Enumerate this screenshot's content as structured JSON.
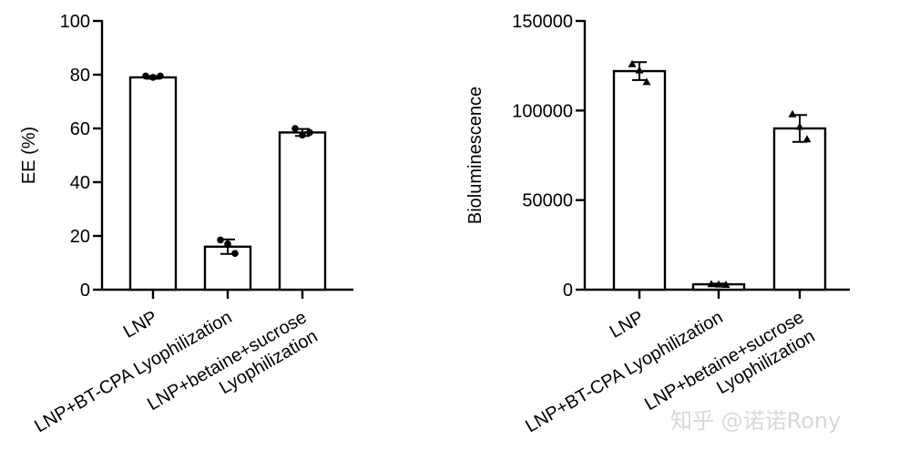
{
  "chart_data": [
    {
      "type": "bar",
      "title": "",
      "xlabel": "",
      "ylabel": "EE (%)",
      "ylim": [
        0,
        100
      ],
      "yticks": [
        "0",
        "20",
        "40",
        "60",
        "80",
        "100"
      ],
      "categories": [
        [
          "LNP"
        ],
        [
          "LNP+BT-CPA Lyophilization"
        ],
        [
          "LNP+betaine+sucrose",
          "Lyophilization"
        ]
      ],
      "values": [
        79,
        16,
        58.5
      ],
      "error": [
        0.5,
        2.7,
        1.3
      ],
      "points": [
        [
          79.5,
          79.0,
          79.5
        ],
        [
          18.5,
          17.0,
          13.5
        ],
        [
          60.0,
          57.5,
          58.5
        ]
      ],
      "point_marker": "circle",
      "grid": false
    },
    {
      "type": "bar",
      "title": "",
      "xlabel": "",
      "ylabel": "Bioluminescence",
      "ylim": [
        0,
        150000
      ],
      "yticks": [
        "0",
        "50000",
        "100000",
        "150000"
      ],
      "categories": [
        [
          "LNP"
        ],
        [
          "LNP+BT-CPA Lyophilization"
        ],
        [
          "LNP+betaine+sucrose",
          "Lyophilization"
        ]
      ],
      "values": [
        122000,
        3000,
        90000
      ],
      "error": [
        5000,
        400,
        7500
      ],
      "points": [
        [
          126000,
          122500,
          116000
        ],
        [
          3200,
          3000,
          2800
        ],
        [
          98000,
          91000,
          84000
        ]
      ],
      "point_marker": "triangle",
      "grid": false
    }
  ],
  "watermark": "知乎 @诺诺Rony"
}
